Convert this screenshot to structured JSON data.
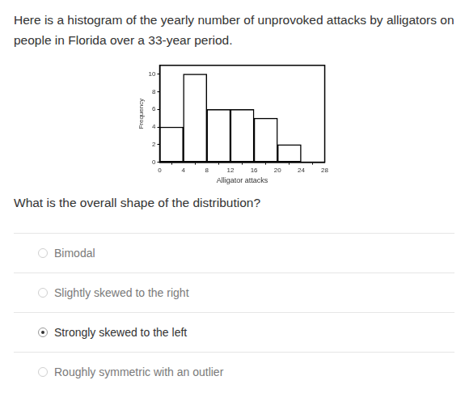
{
  "intro": "Here is a histogram of the yearly number of unprovoked attacks by alligators on people in Florida over a 33-year period.",
  "chart_data": {
    "type": "histogram",
    "bins": [
      0,
      4,
      8,
      12,
      16,
      20,
      24
    ],
    "values": [
      4,
      10,
      6,
      6,
      5,
      2
    ],
    "xlabel": "Alligator attacks",
    "ylabel": "Frequency",
    "xlim": [
      0,
      28
    ],
    "xticks": [
      0,
      4,
      8,
      12,
      16,
      20,
      24,
      28
    ],
    "ylim": [
      0,
      11
    ],
    "yticks": [
      0,
      2,
      4,
      6,
      8,
      10
    ],
    "color": "#ffffff",
    "grid": false
  },
  "question": "What is the overall shape of the distribution?",
  "options": [
    "Bimodal",
    "Slightly skewed to the right",
    "Strongly skewed to the left",
    "Roughly symmetric with an outlier"
  ],
  "selected": 2
}
